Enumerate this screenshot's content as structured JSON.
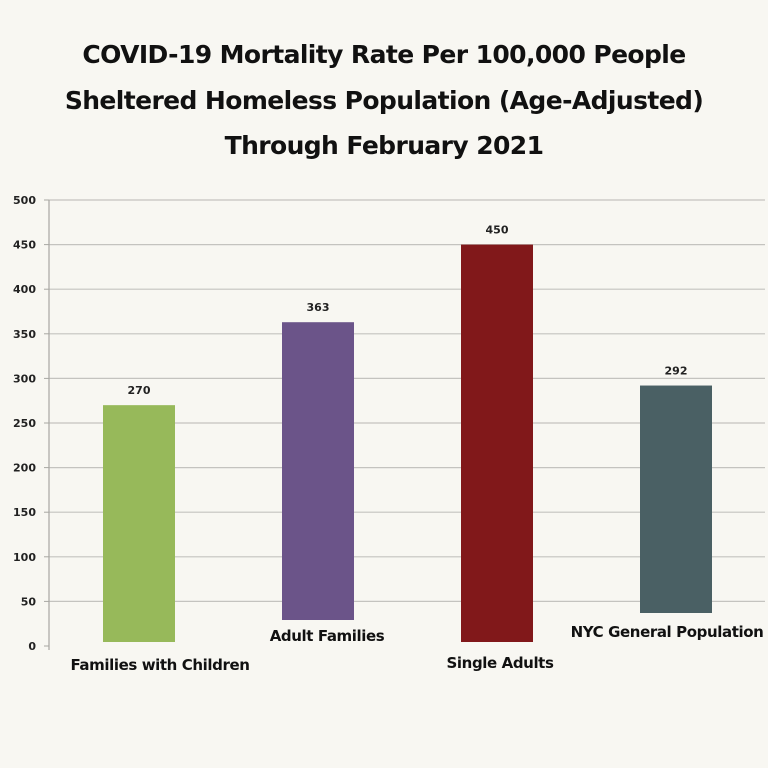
{
  "chart_data": {
    "type": "bar",
    "title": [
      "COVID-19 Mortality Rate Per 100,000 People",
      "Sheltered Homeless Population (Age-Adjusted)",
      "Through February 2021"
    ],
    "xlabel": "",
    "ylabel": "",
    "ylim": [
      0,
      500
    ],
    "yticks": [
      0,
      50,
      100,
      150,
      200,
      250,
      300,
      350,
      400,
      450,
      500
    ],
    "grid": true,
    "legend": "none",
    "categories": [
      "Families with Children",
      "Adult Families",
      "Single Adults",
      "NYC General Population"
    ],
    "values": [
      270,
      363,
      450,
      292
    ],
    "data_labels": [
      "270",
      "363",
      "450",
      "292"
    ],
    "colors": [
      "#97b95a",
      "#6b5489",
      "#81181a",
      "#4a6064"
    ]
  }
}
